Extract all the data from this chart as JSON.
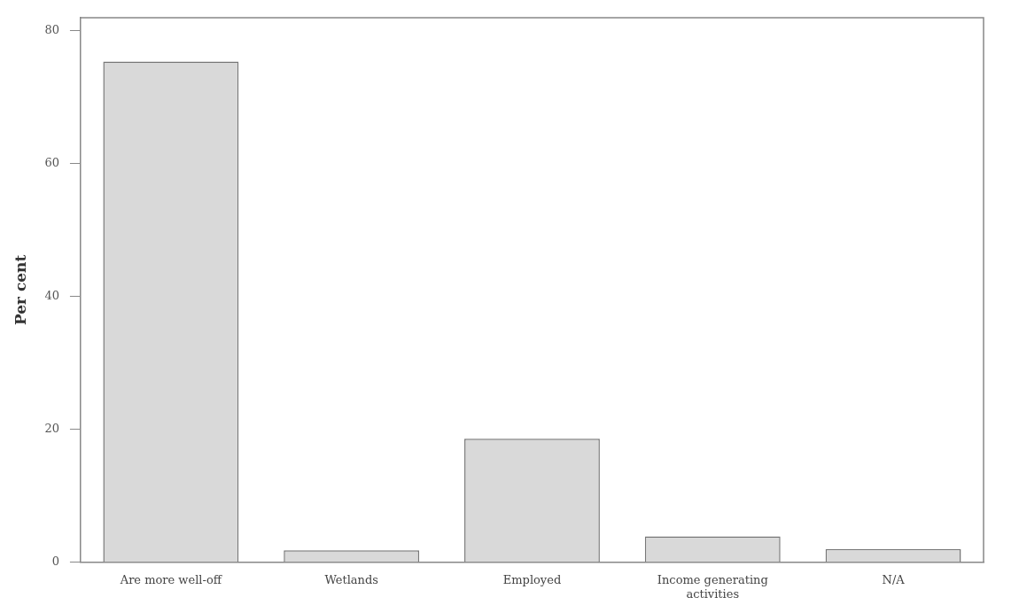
{
  "chart_data": {
    "type": "bar",
    "ylabel": "Per cent",
    "categories": [
      "Are more well-off",
      "Wetlands",
      "Employed",
      "Income generating activities",
      "N/A"
    ],
    "values": [
      75.4,
      1.8,
      18.6,
      3.9,
      2.0
    ],
    "color": "#d9d9d9",
    "ylim": [
      0,
      82
    ],
    "yticks": [
      0,
      20,
      40,
      60,
      80
    ],
    "grid": false,
    "legend": false
  }
}
